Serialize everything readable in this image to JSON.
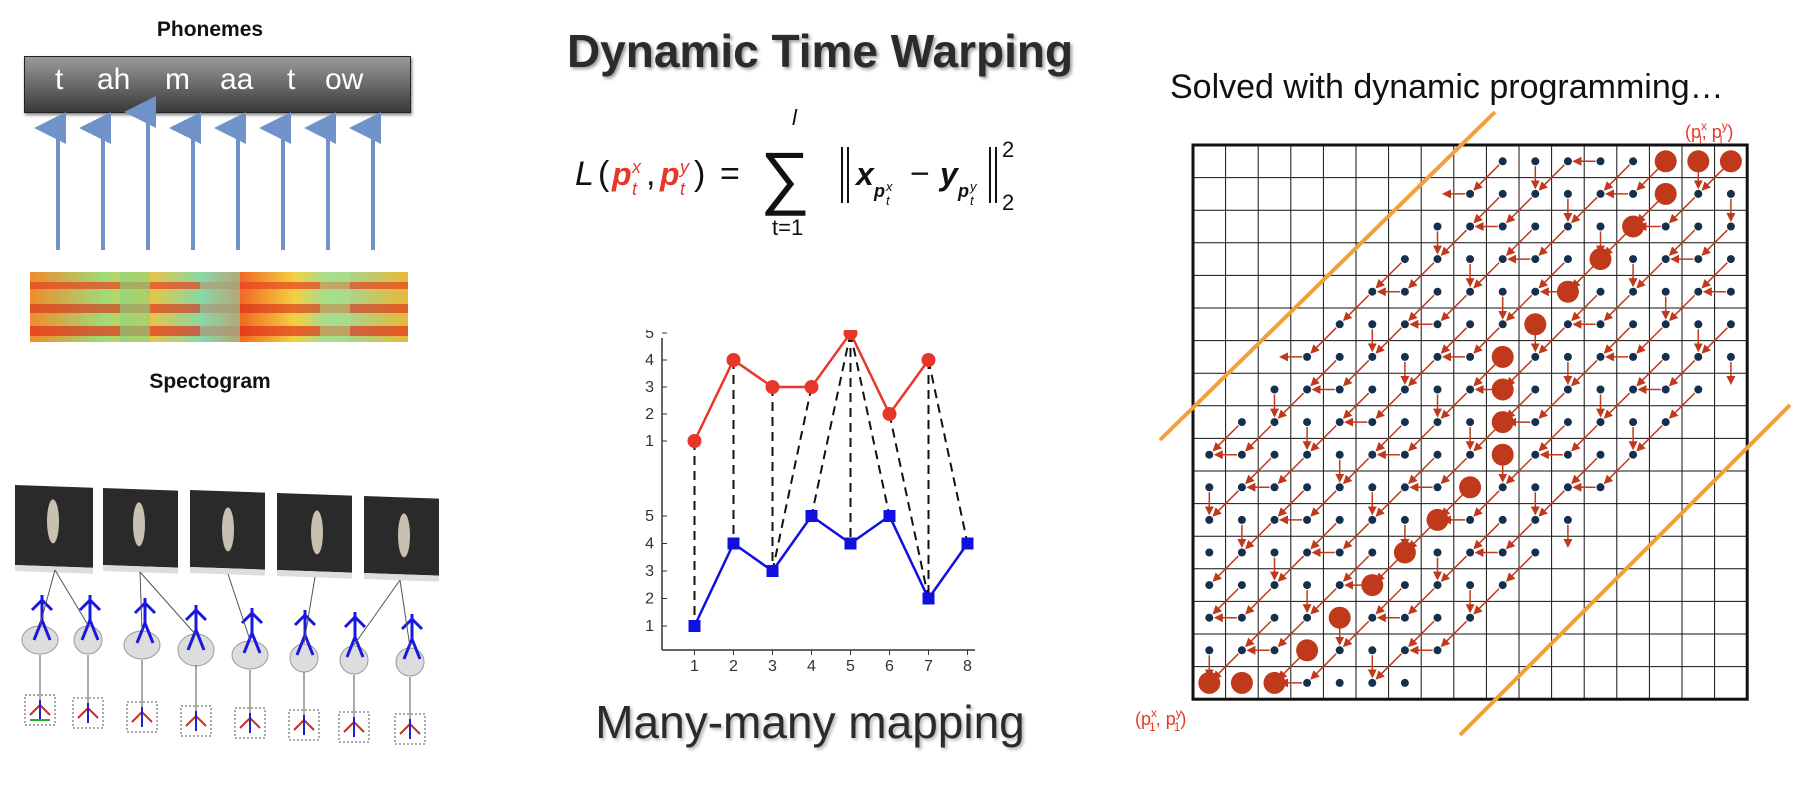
{
  "left_panel": {
    "phonemes_title": "Phonemes",
    "phonemes": [
      "t",
      "ah",
      "m",
      "aa",
      "t",
      "ow"
    ],
    "spectrogram_label": "Spectogram"
  },
  "center_panel": {
    "title": "Dynamic Time Warping",
    "formula": {
      "lhs": "L",
      "p": "p",
      "x": "x",
      "y": "y",
      "t": "t",
      "equals": "=",
      "sum_top": "l",
      "sum_bottom": "t=1",
      "minus": "−",
      "power": "2",
      "sub2": "2"
    },
    "caption": "Many-many mapping"
  },
  "right_panel": {
    "subtitle": "Solved with dynamic programming…",
    "label_end": "(p",
    "label_end_sub": "l",
    "label_start": "(p",
    "label_start_sub": "1"
  },
  "colors": {
    "red": "#e8372a",
    "blue": "#1010e0",
    "dp_red": "#c0391b",
    "dp_blue": "#14304f",
    "orange": "#f0a03c"
  },
  "chart_data": {
    "type": "line",
    "x": [
      1,
      2,
      3,
      4,
      5,
      6,
      7,
      8
    ],
    "x_ticks": [
      "1",
      "2",
      "3",
      "4",
      "5",
      "6",
      "7",
      "8"
    ],
    "series": [
      {
        "values": [
          1,
          4,
          3,
          3,
          5,
          2,
          4,
          null
        ],
        "color": "#e8372a",
        "marker": "circle"
      },
      {
        "values": [
          1,
          4,
          3,
          5,
          4,
          5,
          2,
          4
        ],
        "color": "#1010e0",
        "marker": "square"
      }
    ],
    "y_ticks_upper": [
      "1",
      "2",
      "3",
      "4",
      "5"
    ],
    "y_ticks_lower": [
      "1",
      "2",
      "3",
      "4",
      "5"
    ],
    "mapping": [
      [
        1,
        1
      ],
      [
        2,
        2
      ],
      [
        3,
        3
      ],
      [
        4,
        3
      ],
      [
        5,
        4
      ],
      [
        5,
        5
      ],
      [
        5,
        6
      ],
      [
        6,
        7
      ],
      [
        7,
        7
      ],
      [
        7,
        8
      ]
    ]
  }
}
